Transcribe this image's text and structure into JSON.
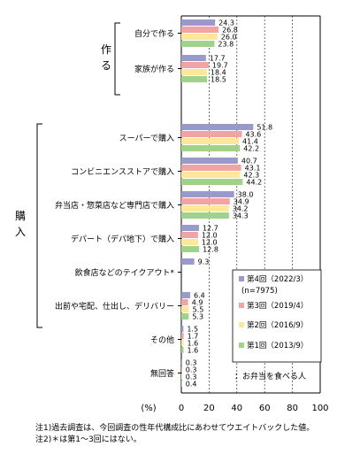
{
  "chart_data": {
    "type": "bar",
    "orientation": "horizontal",
    "unit_label": "(%)",
    "xlim": [
      0,
      100
    ],
    "xticks": [
      "0",
      "20",
      "40",
      "60",
      "80",
      "100"
    ],
    "group_labels": [
      "作る",
      "購入"
    ],
    "categories": [
      "自分で作る",
      "家族が作る",
      "スーパーで購入",
      "コンビニエンスストアで購入",
      "弁当店・惣菜店など専門店で購入",
      "デパート（デパ地下）で購入",
      "飲食店などのテイクアウト*",
      "出前や宅配、仕出し、デリバリー",
      "その他",
      "無回答"
    ],
    "series": [
      {
        "name": "第4回（2022/3）",
        "sub": "(n=7975)",
        "color": "#9999cc",
        "values": [
          24.3,
          17.7,
          51.8,
          40.7,
          38.0,
          12.7,
          9.3,
          6.4,
          1.5,
          0.3
        ],
        "labels": [
          "24.3",
          "17.7",
          "51.8",
          "40.7",
          "38.0",
          "12.7",
          "9.3",
          "6.4",
          "1.5",
          "0.3"
        ]
      },
      {
        "name": "第3回（2019/4）",
        "color": "#f4a3a3",
        "values": [
          26.8,
          19.7,
          43.6,
          43.1,
          34.9,
          12.0,
          null,
          4.9,
          1.7,
          0.3
        ],
        "labels": [
          "26.8",
          "19.7",
          "43.6",
          "43.1",
          "34.9",
          "12.0",
          "",
          "4.9",
          "1.7",
          "0.3"
        ]
      },
      {
        "name": "第2回（2016/9）",
        "color": "#fce79a",
        "values": [
          26.0,
          18.4,
          41.4,
          42.3,
          34.2,
          12.0,
          null,
          5.5,
          1.6,
          0.3
        ],
        "labels": [
          "26.0",
          "18.4",
          "41.4",
          "42.3",
          "34.2",
          "12.0",
          "",
          "5.5",
          "1.6",
          "0.3"
        ]
      },
      {
        "name": "第1回（2013/9）",
        "color": "#9fd38a",
        "values": [
          23.8,
          18.5,
          42.2,
          44.2,
          34.3,
          12.8,
          null,
          5.3,
          1.6,
          0.4
        ],
        "labels": [
          "23.8",
          "18.5",
          "42.2",
          "44.2",
          "34.3",
          "12.8",
          "",
          "5.3",
          "1.6",
          "0.4"
        ]
      }
    ],
    "legend_note": "：お弁当を食べる人",
    "legend_position": "right"
  },
  "notes": [
    "注1)過去調査は、今回調査の性年代構成比にあわせてウエイトバックした値。",
    "注2)＊は第1～3回にはない。"
  ]
}
